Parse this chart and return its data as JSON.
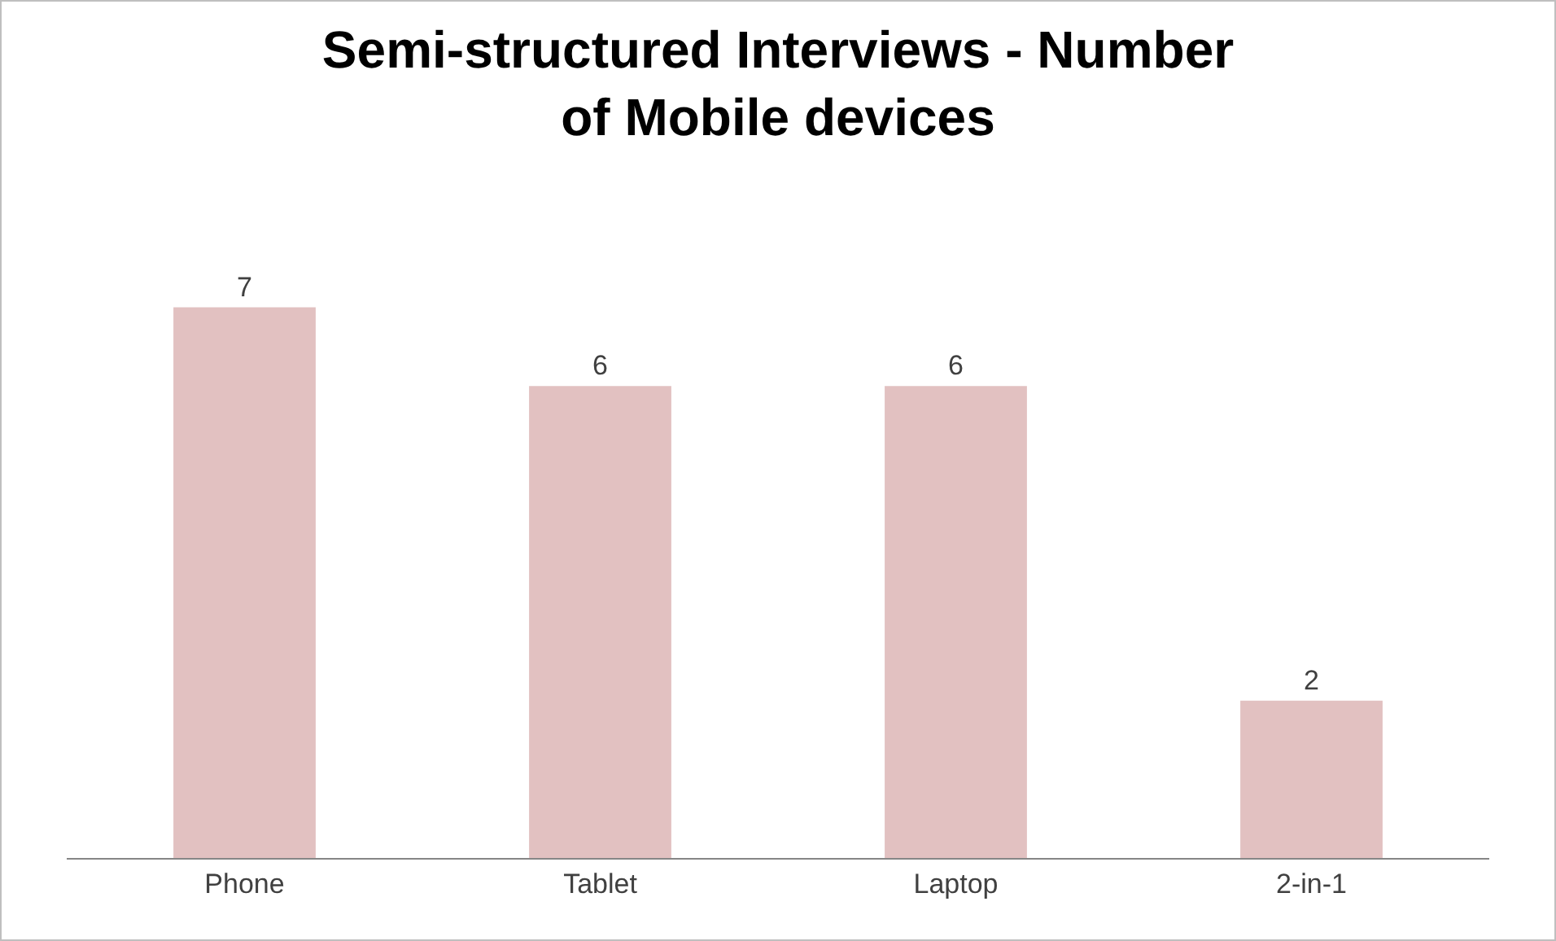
{
  "chart_data": {
    "type": "bar",
    "title": "Semi-structured Interviews - Number of Mobile devices",
    "categories": [
      "Phone",
      "Tablet",
      "Laptop",
      "2-in-1"
    ],
    "values": [
      7,
      6,
      6,
      2
    ],
    "color": "#e2c1c1",
    "data_labels": true,
    "grid": false,
    "legend": false
  }
}
